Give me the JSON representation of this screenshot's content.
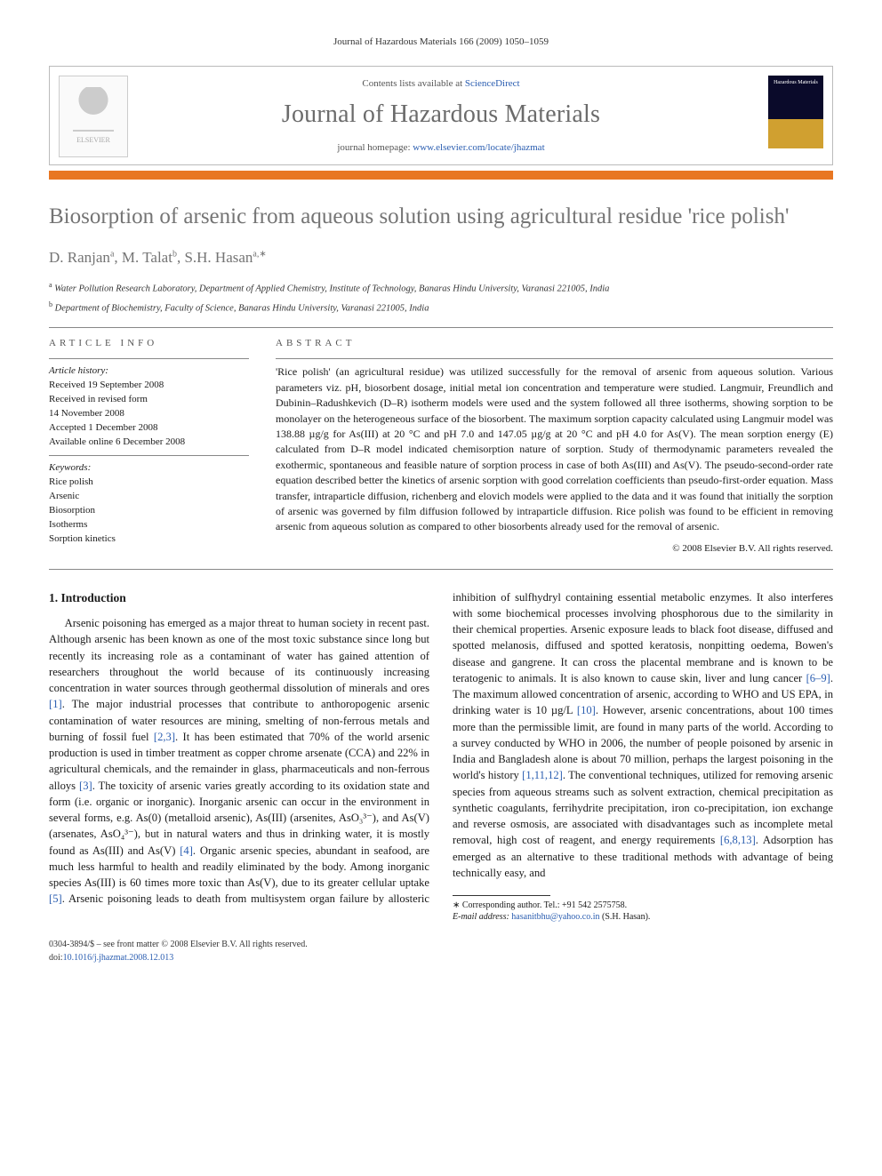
{
  "running_head": "Journal of Hazardous Materials 166 (2009) 1050–1059",
  "header": {
    "contents_prefix": "Contents lists available at ",
    "contents_link": "ScienceDirect",
    "journal_title": "Journal of Hazardous Materials",
    "homepage_prefix": "journal homepage: ",
    "homepage_url": "www.elsevier.com/locate/jhazmat",
    "publisher_label": "ELSEVIER",
    "cover_label": "Hazardous Materials"
  },
  "article": {
    "title": "Biosorption of arsenic from aqueous solution using agricultural residue 'rice polish'",
    "authors_html": "D. Ranjan<sup>a</sup>, M. Talat<sup>b</sup>, S.H. Hasan<sup>a,∗</sup>",
    "affiliations": [
      {
        "sup": "a",
        "text": "Water Pollution Research Laboratory, Department of Applied Chemistry, Institute of Technology, Banaras Hindu University, Varanasi 221005, India"
      },
      {
        "sup": "b",
        "text": "Department of Biochemistry, Faculty of Science, Banaras Hindu University, Varanasi 221005, India"
      }
    ]
  },
  "info": {
    "head": "article info",
    "history_label": "Article history:",
    "history": [
      "Received 19 September 2008",
      "Received in revised form",
      "14 November 2008",
      "Accepted 1 December 2008",
      "Available online 6 December 2008"
    ],
    "keywords_label": "Keywords:",
    "keywords": [
      "Rice polish",
      "Arsenic",
      "Biosorption",
      "Isotherms",
      "Sorption kinetics"
    ]
  },
  "abstract": {
    "head": "abstract",
    "text": "'Rice polish' (an agricultural residue) was utilized successfully for the removal of arsenic from aqueous solution. Various parameters viz. pH, biosorbent dosage, initial metal ion concentration and temperature were studied. Langmuir, Freundlich and Dubinin–Radushkevich (D–R) isotherm models were used and the system followed all three isotherms, showing sorption to be monolayer on the heterogeneous surface of the biosorbent. The maximum sorption capacity calculated using Langmuir model was 138.88 µg/g for As(III) at 20 °C and pH 7.0 and 147.05 µg/g at 20 °C and pH 4.0 for As(V). The mean sorption energy (E) calculated from D–R model indicated chemisorption nature of sorption. Study of thermodynamic parameters revealed the exothermic, spontaneous and feasible nature of sorption process in case of both As(III) and As(V). The pseudo-second-order rate equation described better the kinetics of arsenic sorption with good correlation coefficients than pseudo-first-order equation. Mass transfer, intraparticle diffusion, richenberg and elovich models were applied to the data and it was found that initially the sorption of arsenic was governed by film diffusion followed by intraparticle diffusion. Rice polish was found to be efficient in removing arsenic from aqueous solution as compared to other biosorbents already used for the removal of arsenic.",
    "copyright": "© 2008 Elsevier B.V. All rights reserved."
  },
  "body": {
    "section_number": "1.",
    "section_title": "Introduction",
    "para1_a": "Arsenic poisoning has emerged as a major threat to human society in recent past. Although arsenic has been known as one of the most toxic substance since long but recently its increasing role as a contaminant of water has gained attention of researchers throughout the world because of its continuously increasing concentration in water sources through geothermal dissolution of minerals and ores ",
    "ref1": "[1]",
    "para1_b": ". The major industrial processes that contribute to anthoropogenic arsenic contamination of water resources are mining, smelting of non-ferrous metals and burning of fossil fuel ",
    "ref23": "[2,3]",
    "para1_c": ". It has been estimated that 70% of the world arsenic production is used in timber treatment as copper chrome arsenate (CCA) and 22% in agricultural chemicals, and the remainder in glass, pharmaceuticals and non-ferrous alloys ",
    "ref3": "[3]",
    "para1_d": ". The toxicity of arsenic varies greatly according to its oxidation state and form (i.e. organic or inorganic). Inorganic arsenic can occur in the environment in several forms, e.g. As(0) (metalloid arsenic), As(III) (arsenites, AsO₃³⁻), and As(V) (arsenates, AsO₄³⁻), but in natural waters and thus in drinking water, it is mostly found as As(III) and As(V) ",
    "ref4": "[4]",
    "para1_e": ". Organic arsenic species, abundant in seafood, are much ",
    "para2_a": "less harmful to health and readily eliminated by the body. Among inorganic species As(III) is 60 times more toxic than As(V), due to its greater cellular uptake ",
    "ref5": "[5]",
    "para2_b": ". Arsenic poisoning leads to death from multisystem organ failure by allosteric inhibition of sulfhydryl containing essential metabolic enzymes. It also interferes with some biochemical processes involving phosphorous due to the similarity in their chemical properties. Arsenic exposure leads to black foot disease, diffused and spotted melanosis, diffused and spotted keratosis, nonpitting oedema, Bowen's disease and gangrene. It can cross the placental membrane and is known to be teratogenic to animals. It is also known to cause skin, liver and lung cancer ",
    "ref69": "[6–9]",
    "para2_c": ". The maximum allowed concentration of arsenic, according to WHO and US EPA, in drinking water is 10 µg/L ",
    "ref10": "[10]",
    "para2_d": ". However, arsenic concentrations, about 100 times more than the permissible limit, are found in many parts of the world. According to a survey conducted by WHO in 2006, the number of people poisoned by arsenic in India and Bangladesh alone is about 70 million, perhaps the largest poisoning in the world's history ",
    "ref11112": "[1,11,12]",
    "para2_e": ". The conventional techniques, utilized for removing arsenic species from aqueous streams such as solvent extraction, chemical precipitation as synthetic coagulants, ferrihydrite precipitation, iron co-precipitation, ion exchange and reverse osmosis, are associated with disadvantages such as incomplete metal removal, high cost of reagent, and energy requirements ",
    "ref6813": "[6,8,13]",
    "para2_f": ". Adsorption has emerged as an alternative to these traditional methods with advantage of being technically easy, and"
  },
  "footnote": {
    "corr_label": "∗ Corresponding author. Tel.: +91 542 2575758.",
    "email_label": "E-mail address:",
    "email": "hasanitbhu@yahoo.co.in",
    "email_suffix": "(S.H. Hasan)."
  },
  "footer": {
    "line1": "0304-3894/$ – see front matter © 2008 Elsevier B.V. All rights reserved.",
    "doi_prefix": "doi:",
    "doi": "10.1016/j.jhazmat.2008.12.013"
  },
  "colors": {
    "accent_bar": "#e87722",
    "link": "#2a5db0",
    "title_gray": "#747474",
    "rule": "#888"
  }
}
